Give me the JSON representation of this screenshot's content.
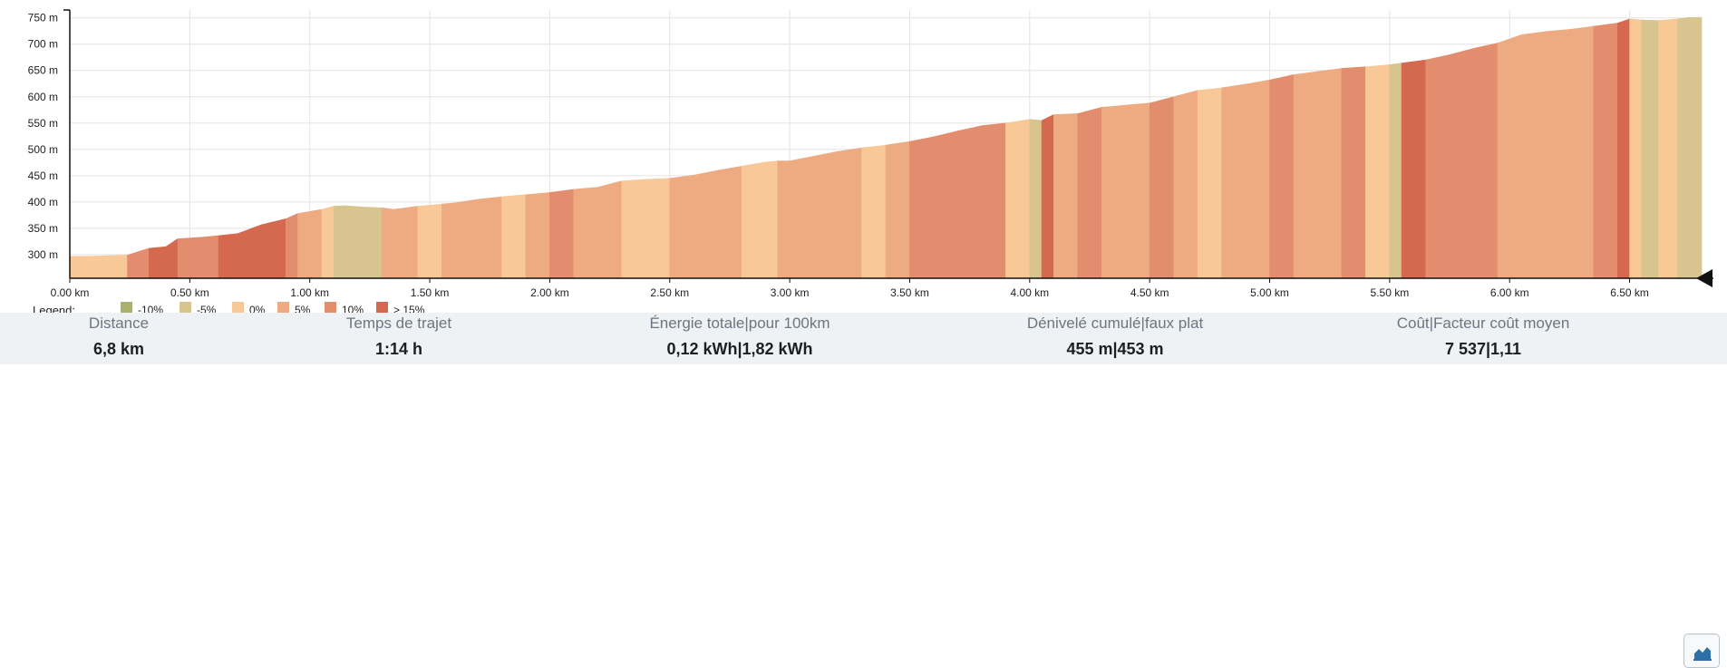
{
  "chart_data": {
    "type": "area",
    "title": "",
    "xlabel": "",
    "ylabel": "",
    "x_unit": "km",
    "y_unit": "m",
    "xlim": [
      0,
      6.8
    ],
    "ylim": [
      255,
      765
    ],
    "x_ticks": [
      "0.00 km",
      "0.50 km",
      "1.00 km",
      "1.50 km",
      "2.00 km",
      "2.50 km",
      "3.00 km",
      "3.50 km",
      "4.00 km",
      "4.50 km",
      "5.00 km",
      "5.50 km",
      "6.00 km",
      "6.50 km"
    ],
    "x_tick_values": [
      0,
      0.5,
      1.0,
      1.5,
      2.0,
      2.5,
      3.0,
      3.5,
      4.0,
      4.5,
      5.0,
      5.5,
      6.0,
      6.5
    ],
    "y_ticks": [
      "300 m",
      "350 m",
      "400 m",
      "450 m",
      "500 m",
      "550 m",
      "600 m",
      "650 m",
      "700 m",
      "750 m"
    ],
    "y_tick_values": [
      300,
      350,
      400,
      450,
      500,
      550,
      600,
      650,
      700,
      750
    ],
    "grid": true,
    "legend_title": "Legend:",
    "legend": [
      {
        "label": "-10%",
        "color": "#a9b16b"
      },
      {
        "label": "-5%",
        "color": "#d7c48f"
      },
      {
        "label": "0%",
        "color": "#f8c897"
      },
      {
        "label": "5%",
        "color": "#eeaa80"
      },
      {
        "label": "10%",
        "color": "#e18d6e"
      },
      {
        "label": "> 15%",
        "color": "#d4694f"
      }
    ],
    "points": [
      [
        0,
        297,
        2
      ],
      [
        0.08,
        297,
        2
      ],
      [
        0.16,
        298,
        2
      ],
      [
        0.24,
        299,
        2
      ],
      [
        0.33,
        312,
        4
      ],
      [
        0.4,
        315,
        5
      ],
      [
        0.45,
        330,
        5
      ],
      [
        0.55,
        333,
        4
      ],
      [
        0.62,
        336,
        4
      ],
      [
        0.7,
        340,
        5
      ],
      [
        0.8,
        357,
        5
      ],
      [
        0.9,
        368,
        5
      ],
      [
        0.95,
        378,
        4
      ],
      [
        1.05,
        386,
        3
      ],
      [
        1.1,
        392,
        2
      ],
      [
        1.15,
        393,
        1
      ],
      [
        1.2,
        391,
        1
      ],
      [
        1.3,
        389,
        1
      ],
      [
        1.35,
        386,
        3
      ],
      [
        1.45,
        392,
        3
      ],
      [
        1.55,
        396,
        2
      ],
      [
        1.6,
        398,
        3
      ],
      [
        1.7,
        405,
        3
      ],
      [
        1.8,
        410,
        3
      ],
      [
        1.9,
        414,
        2
      ],
      [
        2.0,
        418,
        3
      ],
      [
        2.1,
        424,
        4
      ],
      [
        2.2,
        428,
        3
      ],
      [
        2.3,
        440,
        3
      ],
      [
        2.4,
        443,
        2
      ],
      [
        2.5,
        445,
        2
      ],
      [
        2.6,
        451,
        3
      ],
      [
        2.7,
        460,
        3
      ],
      [
        2.8,
        468,
        3
      ],
      [
        2.9,
        476,
        2
      ],
      [
        2.95,
        478,
        2
      ],
      [
        3.0,
        478,
        3
      ],
      [
        3.1,
        487,
        3
      ],
      [
        3.2,
        496,
        3
      ],
      [
        3.3,
        503,
        3
      ],
      [
        3.4,
        508,
        2
      ],
      [
        3.5,
        515,
        3
      ],
      [
        3.6,
        524,
        4
      ],
      [
        3.7,
        535,
        4
      ],
      [
        3.8,
        545,
        4
      ],
      [
        3.9,
        550,
        4
      ],
      [
        4.0,
        557,
        2
      ],
      [
        4.05,
        555,
        1
      ],
      [
        4.1,
        566,
        5
      ],
      [
        4.2,
        568,
        3
      ],
      [
        4.3,
        580,
        4
      ],
      [
        4.4,
        584,
        3
      ],
      [
        4.5,
        588,
        3
      ],
      [
        4.6,
        600,
        4
      ],
      [
        4.7,
        612,
        3
      ],
      [
        4.8,
        617,
        2
      ],
      [
        4.9,
        624,
        3
      ],
      [
        5.0,
        632,
        3
      ],
      [
        5.1,
        642,
        4
      ],
      [
        5.2,
        648,
        3
      ],
      [
        5.3,
        654,
        3
      ],
      [
        5.4,
        657,
        4
      ],
      [
        5.5,
        661,
        2
      ],
      [
        5.55,
        664,
        1
      ],
      [
        5.65,
        670,
        5
      ],
      [
        5.75,
        680,
        4
      ],
      [
        5.85,
        692,
        4
      ],
      [
        5.95,
        702,
        4
      ],
      [
        6.05,
        718,
        3
      ],
      [
        6.15,
        724,
        3
      ],
      [
        6.25,
        728,
        3
      ],
      [
        6.35,
        734,
        3
      ],
      [
        6.45,
        740,
        4
      ],
      [
        6.5,
        748,
        5
      ],
      [
        6.55,
        746,
        2
      ],
      [
        6.62,
        745,
        1
      ],
      [
        6.7,
        748,
        2
      ],
      [
        6.75,
        751,
        1
      ],
      [
        6.8,
        751,
        1
      ]
    ]
  },
  "stats": [
    {
      "label": "Distance",
      "value": "6,8 km"
    },
    {
      "label": "Temps de trajet",
      "value": "1:14 h"
    },
    {
      "label": "Énergie totale|pour 100km",
      "value": "0,12 kWh|1,82 kWh"
    },
    {
      "label": "Dénivelé cumulé|faux plat",
      "value": "455 m|453 m"
    },
    {
      "label": "Coût|Facteur coût moyen",
      "value": "7 537|1,11"
    }
  ],
  "chart_type_button_icon": "area-chart-icon"
}
